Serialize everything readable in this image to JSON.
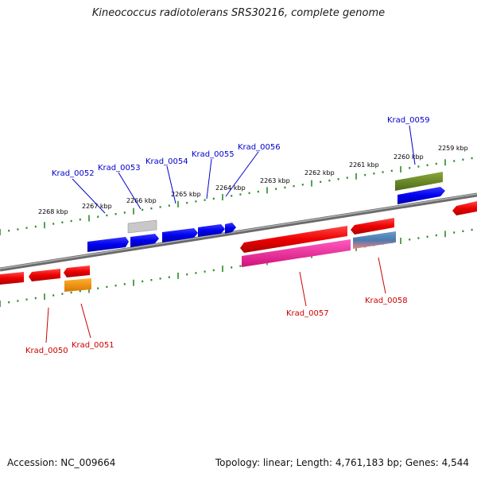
{
  "title": "Kineococcus radiotolerans SRS30216, complete genome",
  "accession": "Accession: NC_009664",
  "stats": "Topology: linear; Length: 4,761,183 bp; Genes: 4,544",
  "colors": {
    "backbone": "#808080",
    "tick": "#2a8a2a",
    "label_top": "#0000cc",
    "label_bottom": "#cc0000",
    "kbp_text": "#000000"
  },
  "kbp_labels": [
    "2268 kbp",
    "2267 kbp",
    "2266 kbp",
    "2265 kbp",
    "2264 kbp",
    "2263 kbp",
    "2262 kbp",
    "2261 kbp",
    "2260 kbp",
    "2259 kbp"
  ],
  "genes_top": [
    {
      "label": "Krad_0052"
    },
    {
      "label": "Krad_0053"
    },
    {
      "label": "Krad_0054"
    },
    {
      "label": "Krad_0055"
    },
    {
      "label": "Krad_0056"
    },
    {
      "label": "Krad_0059"
    }
  ],
  "genes_bottom": [
    {
      "label": "Krad_0050"
    },
    {
      "label": "Krad_0051"
    },
    {
      "label": "Krad_0057"
    },
    {
      "label": "Krad_0058"
    }
  ]
}
